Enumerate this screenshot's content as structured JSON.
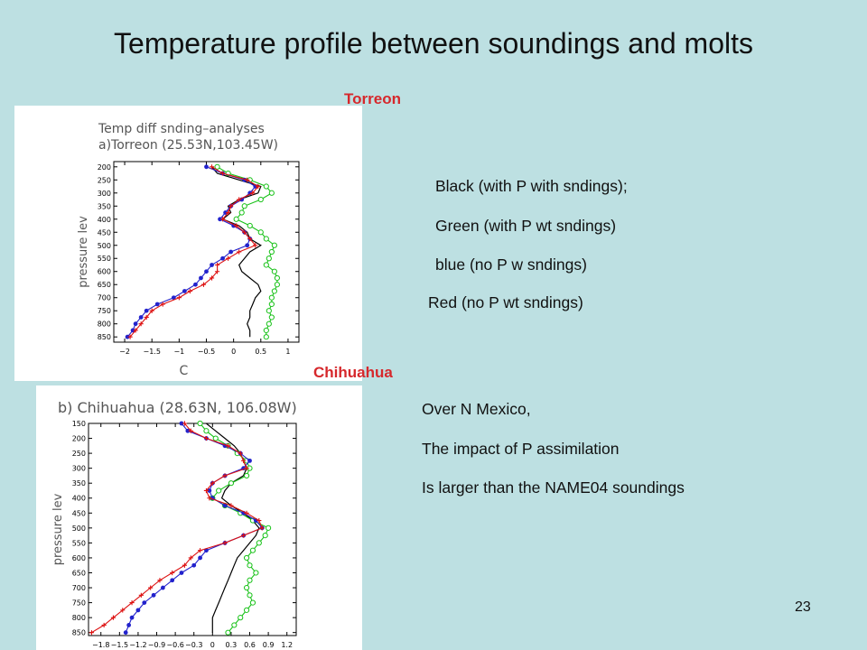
{
  "slide": {
    "title": "Temperature profile between soundings and molts",
    "page_number": "23",
    "label_torreon": "Torreon",
    "label_chihuahua": "Chihuahua",
    "legend_lines": [
      "Black (with P with sndings);",
      "Green (with P wt sndings)",
      "blue (no P w sndings)",
      "Red  (no  P wt sndings)"
    ],
    "note_lines": [
      "Over N Mexico,",
      "The impact of P assimilation",
      "Is larger than the NAME04 soundings"
    ]
  },
  "colors": {
    "background": "#bde0e2",
    "title_text": "#111111",
    "red_label": "#d6282c",
    "black": "#000000",
    "green": "#19c219",
    "blue": "#2222cc",
    "red": "#dd1111"
  },
  "chart_data": [
    {
      "type": "line",
      "title_lines": [
        "Temp  diff  snding–analyses",
        "a)Torreon  (25.53N,103.45W)"
      ],
      "xlabel": "C",
      "ylabel": "pressure  lev",
      "xlim": [
        -2.2,
        1.2
      ],
      "ylim": [
        870,
        180
      ],
      "x_ticks": [
        -2,
        -1.5,
        -1,
        -0.5,
        0,
        0.5,
        1
      ],
      "x_tick_labels": [
        "−2",
        "−1.5",
        "−1",
        "−0.5",
        "0",
        "0.5",
        "1"
      ],
      "y_ticks": [
        200,
        250,
        300,
        350,
        400,
        450,
        500,
        550,
        600,
        650,
        700,
        750,
        800,
        850
      ],
      "pressure": [
        200,
        225,
        250,
        275,
        300,
        325,
        350,
        375,
        400,
        425,
        450,
        475,
        500,
        525,
        550,
        575,
        600,
        625,
        650,
        675,
        700,
        725,
        750,
        775,
        800,
        825,
        850
      ],
      "series": [
        {
          "color": "black",
          "marker": "none",
          "values": [
            -0.4,
            -0.3,
            0.1,
            0.5,
            0.45,
            0.1,
            -0.1,
            -0.05,
            -0.2,
            0.1,
            0.25,
            0.3,
            0.5,
            0.3,
            0.2,
            0.1,
            0.15,
            0.3,
            0.45,
            0.5,
            0.4,
            0.35,
            0.3,
            0.3,
            0.25,
            0.3,
            0.3
          ]
        },
        {
          "color": "green",
          "marker": "circle-open",
          "values": [
            -0.3,
            -0.1,
            0.3,
            0.6,
            0.7,
            0.5,
            0.2,
            0.15,
            0.05,
            0.3,
            0.5,
            0.6,
            0.75,
            0.7,
            0.65,
            0.6,
            0.75,
            0.8,
            0.8,
            0.75,
            0.7,
            0.7,
            0.65,
            0.7,
            0.65,
            0.6,
            0.6
          ]
        },
        {
          "color": "blue",
          "marker": "circle-filled",
          "values": [
            -0.5,
            -0.2,
            0.2,
            0.4,
            0.3,
            0.15,
            -0.05,
            -0.15,
            -0.25,
            0.0,
            0.2,
            0.3,
            0.25,
            -0.05,
            -0.2,
            -0.4,
            -0.5,
            -0.6,
            -0.7,
            -0.9,
            -1.1,
            -1.4,
            -1.6,
            -1.7,
            -1.8,
            -1.85,
            -1.95
          ]
        },
        {
          "color": "red",
          "marker": "plus",
          "values": [
            -0.4,
            -0.2,
            0.25,
            0.45,
            0.35,
            0.1,
            -0.05,
            -0.1,
            -0.2,
            0.05,
            0.2,
            0.3,
            0.4,
            0.1,
            -0.1,
            -0.3,
            -0.3,
            -0.4,
            -0.55,
            -0.8,
            -1.0,
            -1.3,
            -1.5,
            -1.6,
            -1.7,
            -1.8,
            -1.9
          ]
        }
      ]
    },
    {
      "type": "line",
      "title_lines": [
        "b)  Chihuahua  (28.63N,  106.08W)"
      ],
      "xlabel": "C",
      "ylabel": "pressure  lev",
      "xlim": [
        -2.0,
        1.35
      ],
      "ylim": [
        860,
        150
      ],
      "x_ticks": [
        -1.8,
        -1.5,
        -1.2,
        -0.9,
        -0.6,
        -0.3,
        0,
        0.3,
        0.6,
        0.9,
        1.2
      ],
      "x_tick_labels": [
        "−1.8",
        "−1.5",
        "−1.2",
        "−0.9",
        "−0.6",
        "−0.3",
        "0",
        "0.3",
        "0.6",
        "0.9",
        "1.2"
      ],
      "y_ticks": [
        150,
        200,
        250,
        300,
        350,
        400,
        450,
        500,
        550,
        600,
        650,
        700,
        750,
        800,
        850
      ],
      "pressure": [
        150,
        175,
        200,
        225,
        250,
        275,
        300,
        325,
        350,
        375,
        400,
        425,
        450,
        475,
        500,
        525,
        550,
        575,
        600,
        625,
        650,
        675,
        700,
        725,
        750,
        775,
        800,
        825,
        850
      ],
      "series": [
        {
          "color": "black",
          "marker": "none",
          "values": [
            -0.1,
            0.05,
            0.2,
            0.35,
            0.45,
            0.5,
            0.55,
            0.5,
            0.3,
            0.2,
            0.15,
            0.3,
            0.5,
            0.65,
            0.75,
            0.7,
            0.6,
            0.5,
            0.4,
            0.35,
            0.3,
            0.25,
            0.2,
            0.15,
            0.1,
            0.05,
            0.0,
            0.0,
            0.0
          ]
        },
        {
          "color": "green",
          "marker": "circle-open",
          "values": [
            -0.2,
            -0.1,
            0.05,
            0.25,
            0.4,
            0.55,
            0.6,
            0.55,
            0.3,
            0.1,
            0.0,
            0.2,
            0.45,
            0.65,
            0.9,
            0.85,
            0.75,
            0.65,
            0.55,
            0.6,
            0.7,
            0.6,
            0.55,
            0.6,
            0.65,
            0.55,
            0.45,
            0.35,
            0.25
          ]
        },
        {
          "color": "blue",
          "marker": "circle-filled",
          "values": [
            -0.5,
            -0.4,
            -0.1,
            0.2,
            0.45,
            0.6,
            0.5,
            0.2,
            0.0,
            -0.05,
            0.0,
            0.2,
            0.5,
            0.7,
            0.8,
            0.5,
            0.2,
            -0.1,
            -0.2,
            -0.3,
            -0.5,
            -0.65,
            -0.8,
            -0.95,
            -1.1,
            -1.2,
            -1.3,
            -1.35,
            -1.4
          ]
        },
        {
          "color": "red",
          "marker": "plus",
          "values": [
            -0.45,
            -0.35,
            -0.1,
            0.25,
            0.45,
            0.5,
            0.55,
            0.2,
            0.0,
            -0.1,
            -0.05,
            0.3,
            0.55,
            0.75,
            0.8,
            0.5,
            0.2,
            -0.2,
            -0.35,
            -0.45,
            -0.65,
            -0.85,
            -1.0,
            -1.15,
            -1.3,
            -1.45,
            -1.6,
            -1.75,
            -1.95
          ]
        }
      ]
    }
  ]
}
